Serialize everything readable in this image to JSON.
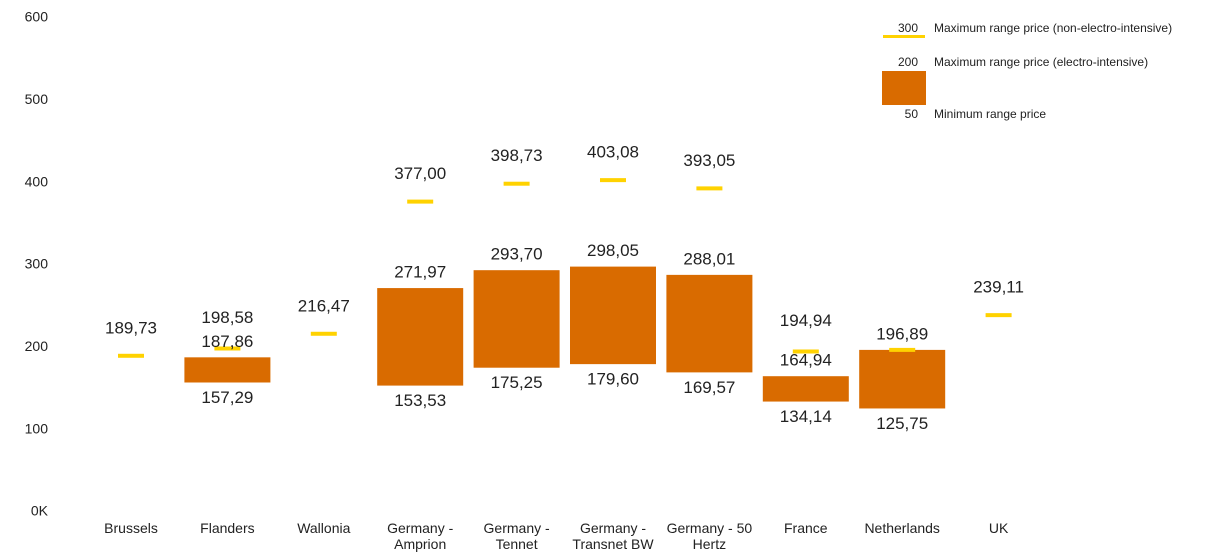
{
  "chart_data": {
    "type": "floating-bar",
    "categories": [
      "Brussels",
      "Flanders",
      "Wallonia",
      "Germany - Amprion",
      "Germany - Tennet",
      "Germany - Transnet BW",
      "Germany - 50 Hertz",
      "France",
      "Netherlands",
      "UK"
    ],
    "series": [
      {
        "name": "Maximum range price (non-electro-intensive)",
        "legend_sample": "300",
        "color": "#ffd200",
        "values": [
          189.73,
          198.58,
          216.47,
          377.0,
          398.73,
          403.08,
          393.05,
          194.94,
          196.89,
          239.11
        ],
        "value_labels": [
          "189,73",
          "198,58",
          "216,47",
          "377,00",
          "398,73",
          "403,08",
          "393,05",
          "194,94",
          null,
          "239,11"
        ]
      },
      {
        "name": "Maximum range price (electro-intensive)",
        "legend_sample": "200",
        "color": "#d96b00",
        "values": [
          null,
          187.86,
          null,
          271.97,
          293.7,
          298.05,
          288.01,
          164.94,
          196.89,
          null
        ],
        "value_labels": [
          null,
          "187,86",
          null,
          "271,97",
          "293,70",
          "298,05",
          "288,01",
          "164,94",
          "196,89",
          null
        ]
      },
      {
        "name": "Minimum range price",
        "legend_sample": "50",
        "color": "#d96b00",
        "values": [
          null,
          157.29,
          null,
          153.53,
          175.25,
          179.6,
          169.57,
          134.14,
          125.75,
          null
        ],
        "value_labels": [
          null,
          "157,29",
          null,
          "153,53",
          "175,25",
          "179,60",
          "169,57",
          "134,14",
          "125,75",
          null
        ]
      }
    ],
    "ylim": [
      0,
      600
    ],
    "yticks": [
      {
        "value": 0,
        "label": "0K"
      },
      100,
      200,
      300,
      400,
      500,
      600
    ],
    "grid": false
  }
}
